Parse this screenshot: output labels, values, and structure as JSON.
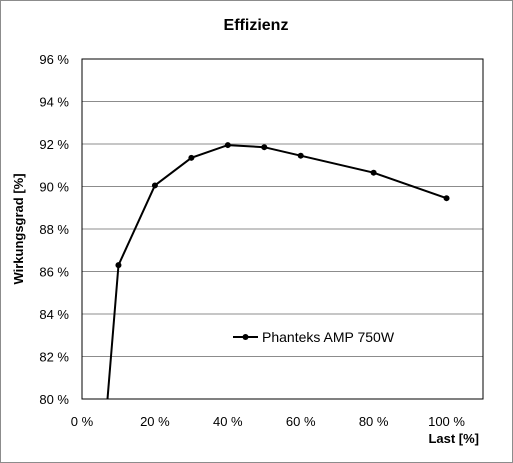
{
  "chart_data": {
    "type": "line",
    "title": "Effizienz",
    "xlabel": "Last [%]",
    "ylabel": "Wirkungsgrad [%]",
    "xlim": [
      0,
      110
    ],
    "ylim": [
      80,
      96
    ],
    "x_ticks": [
      0,
      20,
      40,
      60,
      80,
      100
    ],
    "x_tick_labels": [
      "0 %",
      "20 %",
      "40 %",
      "60 %",
      "80 %",
      "100 %"
    ],
    "y_ticks": [
      80,
      82,
      84,
      86,
      88,
      90,
      92,
      94,
      96
    ],
    "y_tick_labels": [
      "80 %",
      "82 %",
      "84 %",
      "86 %",
      "88 %",
      "90 %",
      "92 %",
      "94 %",
      "96 %"
    ],
    "grid": "horizontal",
    "legend_position": "inside-lower-center",
    "series": [
      {
        "name": "Phanteks AMP 750W",
        "color": "#000000",
        "marker": "circle",
        "x": [
          7,
          10,
          20,
          30,
          40,
          50,
          60,
          80,
          100
        ],
        "y": [
          80.0,
          86.3,
          90.05,
          91.35,
          91.95,
          91.85,
          91.45,
          90.65,
          89.45
        ],
        "marker_shown": [
          false,
          true,
          true,
          true,
          true,
          true,
          true,
          true,
          true
        ]
      }
    ]
  }
}
